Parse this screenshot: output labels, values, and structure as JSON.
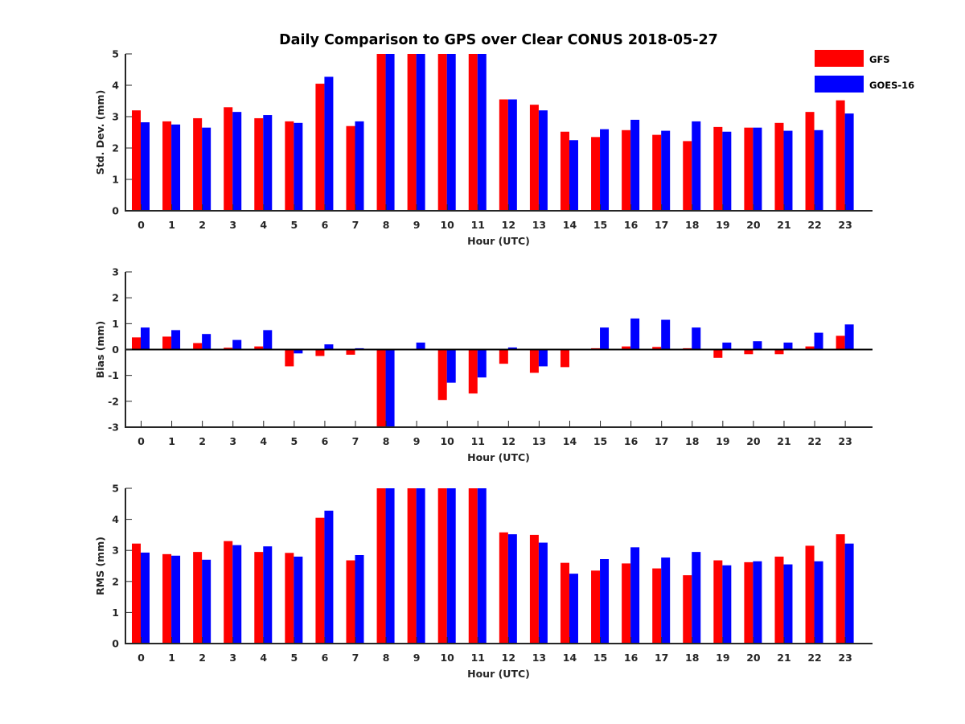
{
  "chart_data": [
    {
      "type": "bar",
      "title": "Daily Comparison to GPS over Clear CONUS 2018-05-27",
      "xlabel": "Hour (UTC)",
      "ylabel": "Std. Dev. (mm)",
      "ylim": [
        0,
        5
      ],
      "yticks": [
        0,
        1,
        2,
        3,
        4,
        5
      ],
      "categories": [
        "0",
        "1",
        "2",
        "3",
        "4",
        "5",
        "6",
        "7",
        "8",
        "9",
        "10",
        "11",
        "12",
        "13",
        "14",
        "15",
        "16",
        "17",
        "18",
        "19",
        "20",
        "21",
        "22",
        "23"
      ],
      "series": [
        {
          "name": "GFS",
          "color": "#ff0000",
          "values": [
            3.2,
            2.85,
            2.95,
            3.3,
            2.95,
            2.85,
            4.05,
            2.7,
            5,
            5,
            5,
            5,
            3.55,
            3.38,
            2.52,
            2.35,
            2.57,
            2.42,
            2.22,
            2.67,
            2.65,
            2.8,
            3.15,
            3.52
          ]
        },
        {
          "name": "GOES-16",
          "color": "#0000ff",
          "values": [
            2.82,
            2.75,
            2.65,
            3.15,
            3.05,
            2.8,
            4.27,
            2.85,
            5,
            5,
            5,
            5,
            3.55,
            3.2,
            2.25,
            2.6,
            2.9,
            2.55,
            2.85,
            2.52,
            2.65,
            2.55,
            2.57,
            3.1
          ]
        }
      ]
    },
    {
      "type": "bar",
      "xlabel": "Hour (UTC)",
      "ylabel": "Bias (mm)",
      "ylim": [
        -3,
        3
      ],
      "yticks": [
        -3,
        -2,
        -1,
        0,
        1,
        2,
        3
      ],
      "categories": [
        "0",
        "1",
        "2",
        "3",
        "4",
        "5",
        "6",
        "7",
        "8",
        "9",
        "10",
        "11",
        "12",
        "13",
        "14",
        "15",
        "16",
        "17",
        "18",
        "19",
        "20",
        "21",
        "22",
        "23"
      ],
      "series": [
        {
          "name": "GFS",
          "color": "#ff0000",
          "values": [
            0.47,
            0.5,
            0.25,
            0.07,
            0.12,
            -0.65,
            -0.25,
            -0.2,
            -3,
            0.0,
            -1.95,
            -1.7,
            -0.55,
            -0.9,
            -0.68,
            0.05,
            0.12,
            0.1,
            0.05,
            -0.32,
            -0.18,
            -0.18,
            0.12,
            0.53
          ]
        },
        {
          "name": "GOES-16",
          "color": "#0000ff",
          "values": [
            0.85,
            0.75,
            0.6,
            0.37,
            0.75,
            -0.15,
            0.2,
            0.05,
            -3,
            0.27,
            -1.28,
            -1.08,
            0.08,
            -0.65,
            0.02,
            0.85,
            1.2,
            1.15,
            0.85,
            0.27,
            0.32,
            0.27,
            0.65,
            0.97
          ]
        }
      ]
    },
    {
      "type": "bar",
      "xlabel": "Hour (UTC)",
      "ylabel": "RMS (mm)",
      "ylim": [
        0,
        5
      ],
      "yticks": [
        0,
        1,
        2,
        3,
        4,
        5
      ],
      "categories": [
        "0",
        "1",
        "2",
        "3",
        "4",
        "5",
        "6",
        "7",
        "8",
        "9",
        "10",
        "11",
        "12",
        "13",
        "14",
        "15",
        "16",
        "17",
        "18",
        "19",
        "20",
        "21",
        "22",
        "23"
      ],
      "series": [
        {
          "name": "GFS",
          "color": "#ff0000",
          "values": [
            3.22,
            2.88,
            2.95,
            3.3,
            2.95,
            2.92,
            4.05,
            2.68,
            5,
            5,
            5,
            5,
            3.58,
            3.5,
            2.6,
            2.35,
            2.58,
            2.42,
            2.2,
            2.68,
            2.62,
            2.8,
            3.15,
            3.52
          ]
        },
        {
          "name": "GOES-16",
          "color": "#0000ff",
          "values": [
            2.93,
            2.83,
            2.7,
            3.17,
            3.13,
            2.8,
            4.28,
            2.85,
            5,
            5,
            5,
            5,
            3.52,
            3.25,
            2.25,
            2.72,
            3.1,
            2.77,
            2.95,
            2.52,
            2.65,
            2.55,
            2.65,
            3.22
          ]
        }
      ]
    }
  ],
  "legend": [
    {
      "label": "GFS",
      "color": "#ff0000"
    },
    {
      "label": "GOES-16",
      "color": "#0000ff"
    }
  ]
}
